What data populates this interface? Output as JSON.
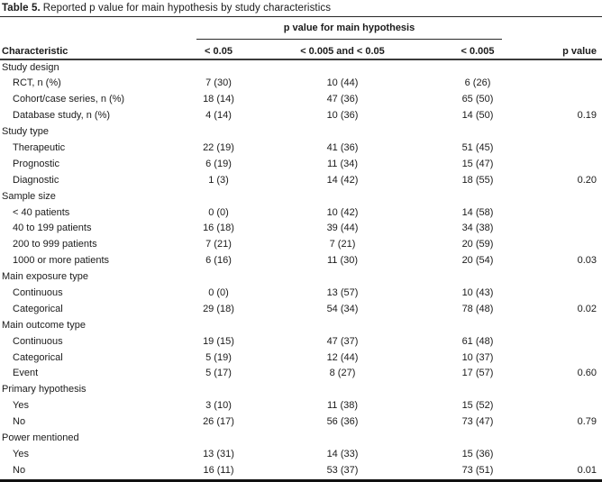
{
  "title": {
    "label": "Table 5.",
    "text": "Reported p value for main hypothesis by study characteristics"
  },
  "colors": {
    "text": "#1b1b1b",
    "thin_rule": "#262626",
    "header_rule": "#3b3b3b",
    "bottom_rule": "#111111"
  },
  "table": {
    "spanner": "p value for main hypothesis",
    "columns": [
      "Characteristic",
      "< 0.05",
      "< 0.005 and < 0.05",
      "< 0.005",
      "p value"
    ],
    "sections": [
      {
        "header": "Study design",
        "rows": [
          {
            "label": "RCT, n (%)",
            "values": [
              "7 (30)",
              "10 (44)",
              "6 (26)",
              ""
            ]
          },
          {
            "label": "Cohort/case series, n (%)",
            "values": [
              "18 (14)",
              "47 (36)",
              "65 (50)",
              ""
            ]
          },
          {
            "label": "Database study, n (%)",
            "values": [
              "4 (14)",
              "10 (36)",
              "14 (50)",
              "0.19"
            ]
          }
        ]
      },
      {
        "header": "Study type",
        "rows": [
          {
            "label": "Therapeutic",
            "values": [
              "22 (19)",
              "41 (36)",
              "51 (45)",
              ""
            ]
          },
          {
            "label": "Prognostic",
            "values": [
              "6 (19)",
              "11 (34)",
              "15 (47)",
              ""
            ]
          },
          {
            "label": "Diagnostic",
            "values": [
              "1 (3)",
              "14 (42)",
              "18 (55)",
              "0.20"
            ]
          }
        ]
      },
      {
        "header": "Sample size",
        "rows": [
          {
            "label": "< 40 patients",
            "values": [
              "0 (0)",
              "10 (42)",
              "14 (58)",
              ""
            ]
          },
          {
            "label": "40 to 199 patients",
            "values": [
              "16 (18)",
              "39 (44)",
              "34 (38)",
              ""
            ]
          },
          {
            "label": "200 to 999 patients",
            "values": [
              "7 (21)",
              "7 (21)",
              "20 (59)",
              ""
            ]
          },
          {
            "label": "1000 or more patients",
            "values": [
              "6 (16)",
              "11 (30)",
              "20 (54)",
              "0.03"
            ]
          }
        ]
      },
      {
        "header": "Main exposure type",
        "rows": [
          {
            "label": "Continuous",
            "values": [
              "0 (0)",
              "13 (57)",
              "10 (43)",
              ""
            ]
          },
          {
            "label": "Categorical",
            "values": [
              "29 (18)",
              "54 (34)",
              "78 (48)",
              "0.02"
            ]
          }
        ]
      },
      {
        "header": "Main outcome type",
        "rows": [
          {
            "label": "Continuous",
            "values": [
              "19 (15)",
              "47 (37)",
              "61 (48)",
              ""
            ]
          },
          {
            "label": "Categorical",
            "values": [
              "5 (19)",
              "12 (44)",
              "10 (37)",
              ""
            ]
          },
          {
            "label": "Event",
            "values": [
              "5 (17)",
              "8 (27)",
              "17 (57)",
              "0.60"
            ]
          }
        ]
      },
      {
        "header": "Primary hypothesis",
        "rows": [
          {
            "label": "Yes",
            "values": [
              "3 (10)",
              "11 (38)",
              "15 (52)",
              ""
            ]
          },
          {
            "label": "No",
            "values": [
              "26 (17)",
              "56 (36)",
              "73 (47)",
              "0.79"
            ]
          }
        ]
      },
      {
        "header": "Power mentioned",
        "rows": [
          {
            "label": "Yes",
            "values": [
              "13 (31)",
              "14 (33)",
              "15 (36)",
              ""
            ]
          },
          {
            "label": "No",
            "values": [
              "16 (11)",
              "53 (37)",
              "73 (51)",
              "0.01"
            ]
          }
        ]
      }
    ]
  }
}
